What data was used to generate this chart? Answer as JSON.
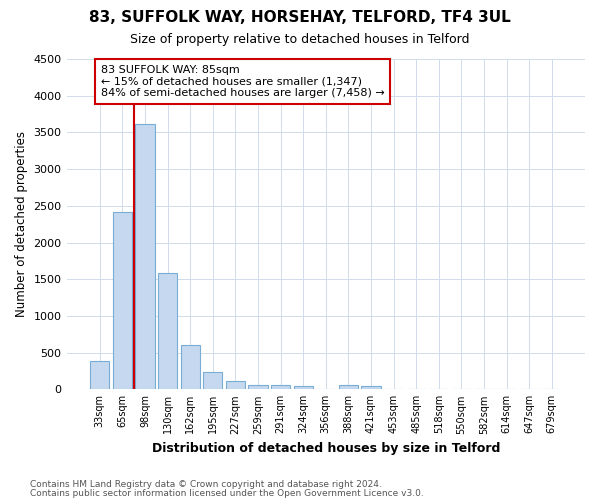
{
  "title": "83, SUFFOLK WAY, HORSEHAY, TELFORD, TF4 3UL",
  "subtitle": "Size of property relative to detached houses in Telford",
  "xlabel": "Distribution of detached houses by size in Telford",
  "ylabel": "Number of detached properties",
  "footnote1": "Contains HM Land Registry data © Crown copyright and database right 2024.",
  "footnote2": "Contains public sector information licensed under the Open Government Licence v3.0.",
  "categories": [
    "33sqm",
    "65sqm",
    "98sqm",
    "130sqm",
    "162sqm",
    "195sqm",
    "227sqm",
    "259sqm",
    "291sqm",
    "324sqm",
    "356sqm",
    "388sqm",
    "421sqm",
    "453sqm",
    "485sqm",
    "518sqm",
    "550sqm",
    "582sqm",
    "614sqm",
    "647sqm",
    "679sqm"
  ],
  "values": [
    380,
    2420,
    3620,
    1580,
    610,
    240,
    110,
    65,
    55,
    50,
    0,
    65,
    50,
    0,
    0,
    0,
    0,
    0,
    0,
    0,
    0
  ],
  "bar_color": "#c5d8f0",
  "bar_edge_color": "#7aadd4",
  "grid_color": "#d0dcea",
  "background_color": "#ffffff",
  "red_line_x": 1.5,
  "annotation_text": "83 SUFFOLK WAY: 85sqm\n← 15% of detached houses are smaller (1,347)\n84% of semi-detached houses are larger (7,458) →",
  "annotation_box_color": "#ffffff",
  "annotation_border_color": "#cc0000",
  "ylim": [
    0,
    4500
  ],
  "yticks": [
    0,
    500,
    1000,
    1500,
    2000,
    2500,
    3000,
    3500,
    4000,
    4500
  ]
}
